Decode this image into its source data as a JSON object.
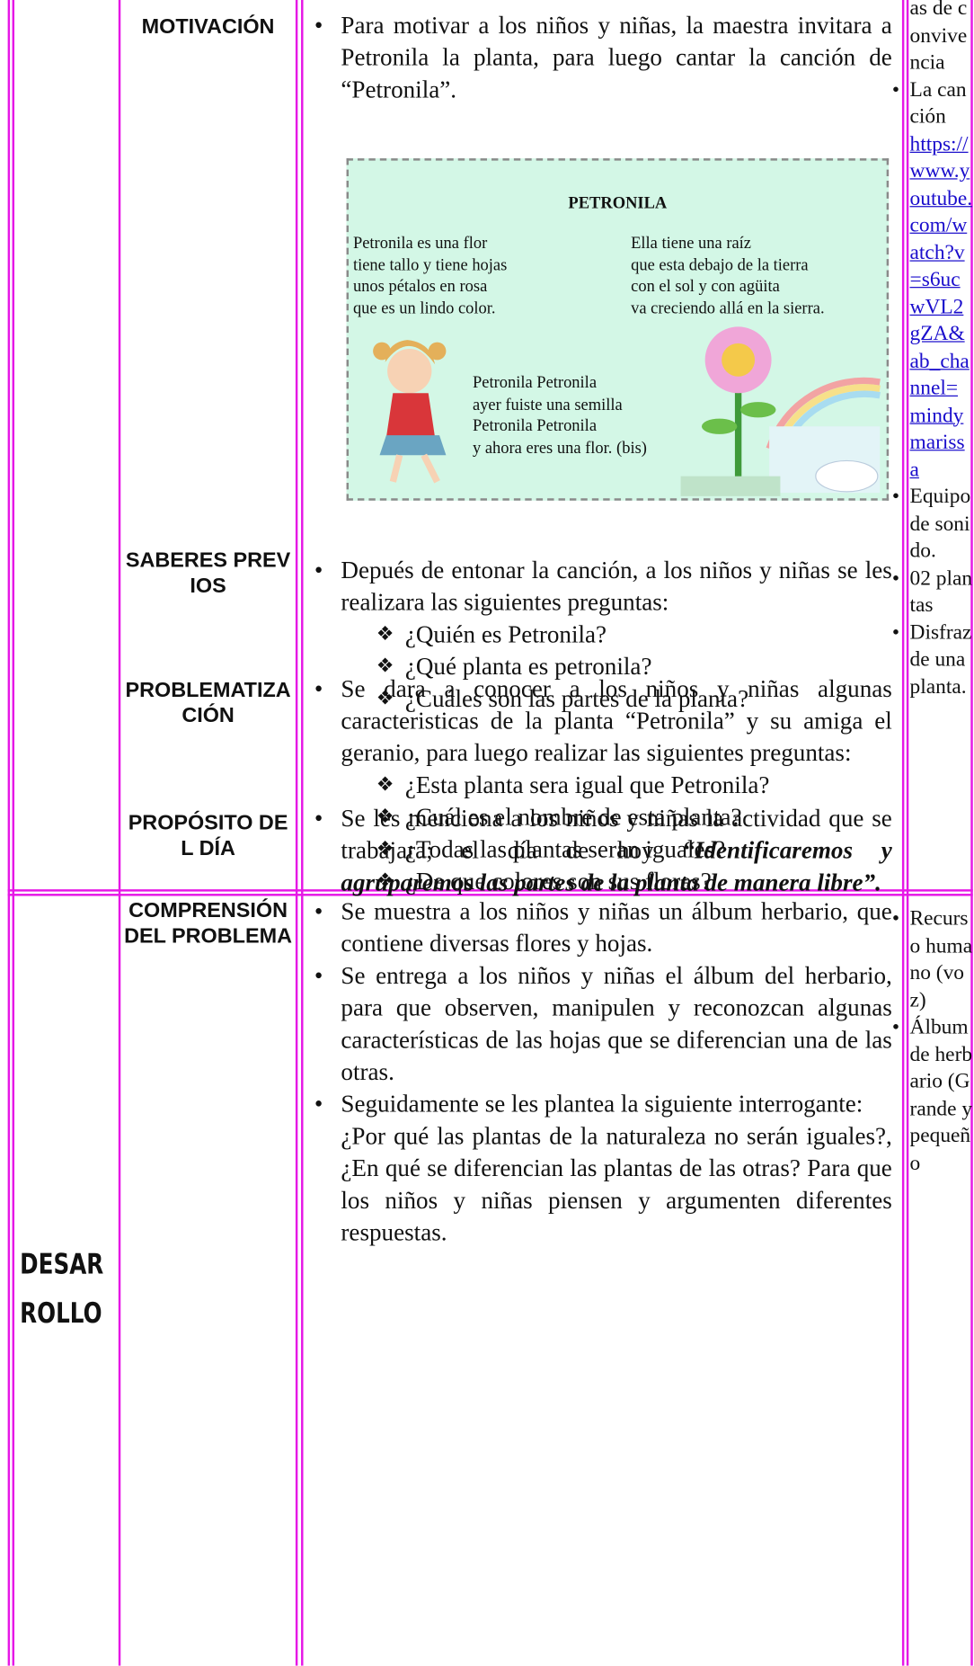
{
  "table": {
    "rows": [
      {
        "sections": [
          {
            "label": "MOTIVACIÓN",
            "bullets": [
              {
                "text": "Para motivar a los niños y niñas, la maestra invitara a Petronila la planta, para luego cantar la canción de “Petronila”."
              }
            ],
            "poem": {
              "title": "PETRONILA",
              "stanzas": [
                [
                  "Petronila es una flor",
                  "tiene tallo y tiene hojas",
                  "unos pétalos en rosa",
                  "que es un lindo color."
                ],
                [
                  "Ella tiene una raíz",
                  "que esta debajo de la tierra",
                  "con el sol y con agüita",
                  "va creciendo allá en la sierra."
                ],
                [
                  "Petronila Petronila",
                  "ayer fuiste una semilla",
                  "Petronila Petronila",
                  "y ahora eres una flor. (bis)"
                ]
              ]
            }
          },
          {
            "label": "SABERES PREVIOS",
            "bullets": [
              {
                "text": "Depués de entonar la canción, a los niños y niñas se les realizara las siguientes preguntas:",
                "items": [
                  "¿Quién es Petronila?",
                  "¿Qué planta es petronila?",
                  "¿Cuáles son las partes de la planta?"
                ]
              }
            ]
          },
          {
            "label": "PROBLEMATIZACIÓN",
            "bullets": [
              {
                "text": "Se dara a conocer a los niños y niñas algunas caracteristicas de la planta “Petronila” y su amiga el geranio, para luego realizar las siguientes preguntas:",
                "items": [
                  "¿Esta planta sera igual que Petronila?",
                  "¿Cuál es el nombre de esta planta?",
                  "¿Todas las plantas seran iguales?",
                  "¿De que colores son sus flores?"
                ]
              }
            ]
          },
          {
            "label": "PROPÓSITO DEL DÍA",
            "bullets": [
              {
                "text": "Se les menciona a los niños y niñas la actividad que se trabajara; el día de hoy",
                "emphasis": "“Identificaremos y agruparemos las partes de la planta de manera libre”."
              }
            ]
          }
        ],
        "resources": [
          {
            "text": "as de convivencia"
          },
          {
            "text": "La canción",
            "link": "https://www.youtube.com/watch?v=s6ucwVL2gZA&ab_channel=mindymarissa"
          },
          {
            "text": "Equipo de sonido."
          },
          {
            "text": "02 plantas"
          },
          {
            "text": "Disfraz de una planta."
          }
        ]
      },
      {
        "phase": "DESAR ROLLO",
        "sections": [
          {
            "label": "COMPRENSIÓN DEL PROBLEMA",
            "bullets": [
              {
                "text": "Se muestra a los niños y niñas un álbum herbario, que contiene diversas flores y hojas."
              },
              {
                "text": "Se entrega a los niños y niñas el álbum del herbario, para que observen, manipulen y reconozcan algunas características de las hojas que se diferencian una de las otras."
              },
              {
                "text": "Seguidamente se les plantea la siguiente interrogante:",
                "note": "¿Por qué las plantas de la naturaleza no serán iguales?, ¿En qué se diferencian las plantas de las otras? Para que los niños y niñas piensen y argumenten diferentes respuestas."
              }
            ]
          }
        ],
        "resources": [
          {
            "text": "Recurso humano (voz)"
          },
          {
            "text": "Álbum de herbario (Grande y pequeño"
          }
        ]
      }
    ]
  }
}
